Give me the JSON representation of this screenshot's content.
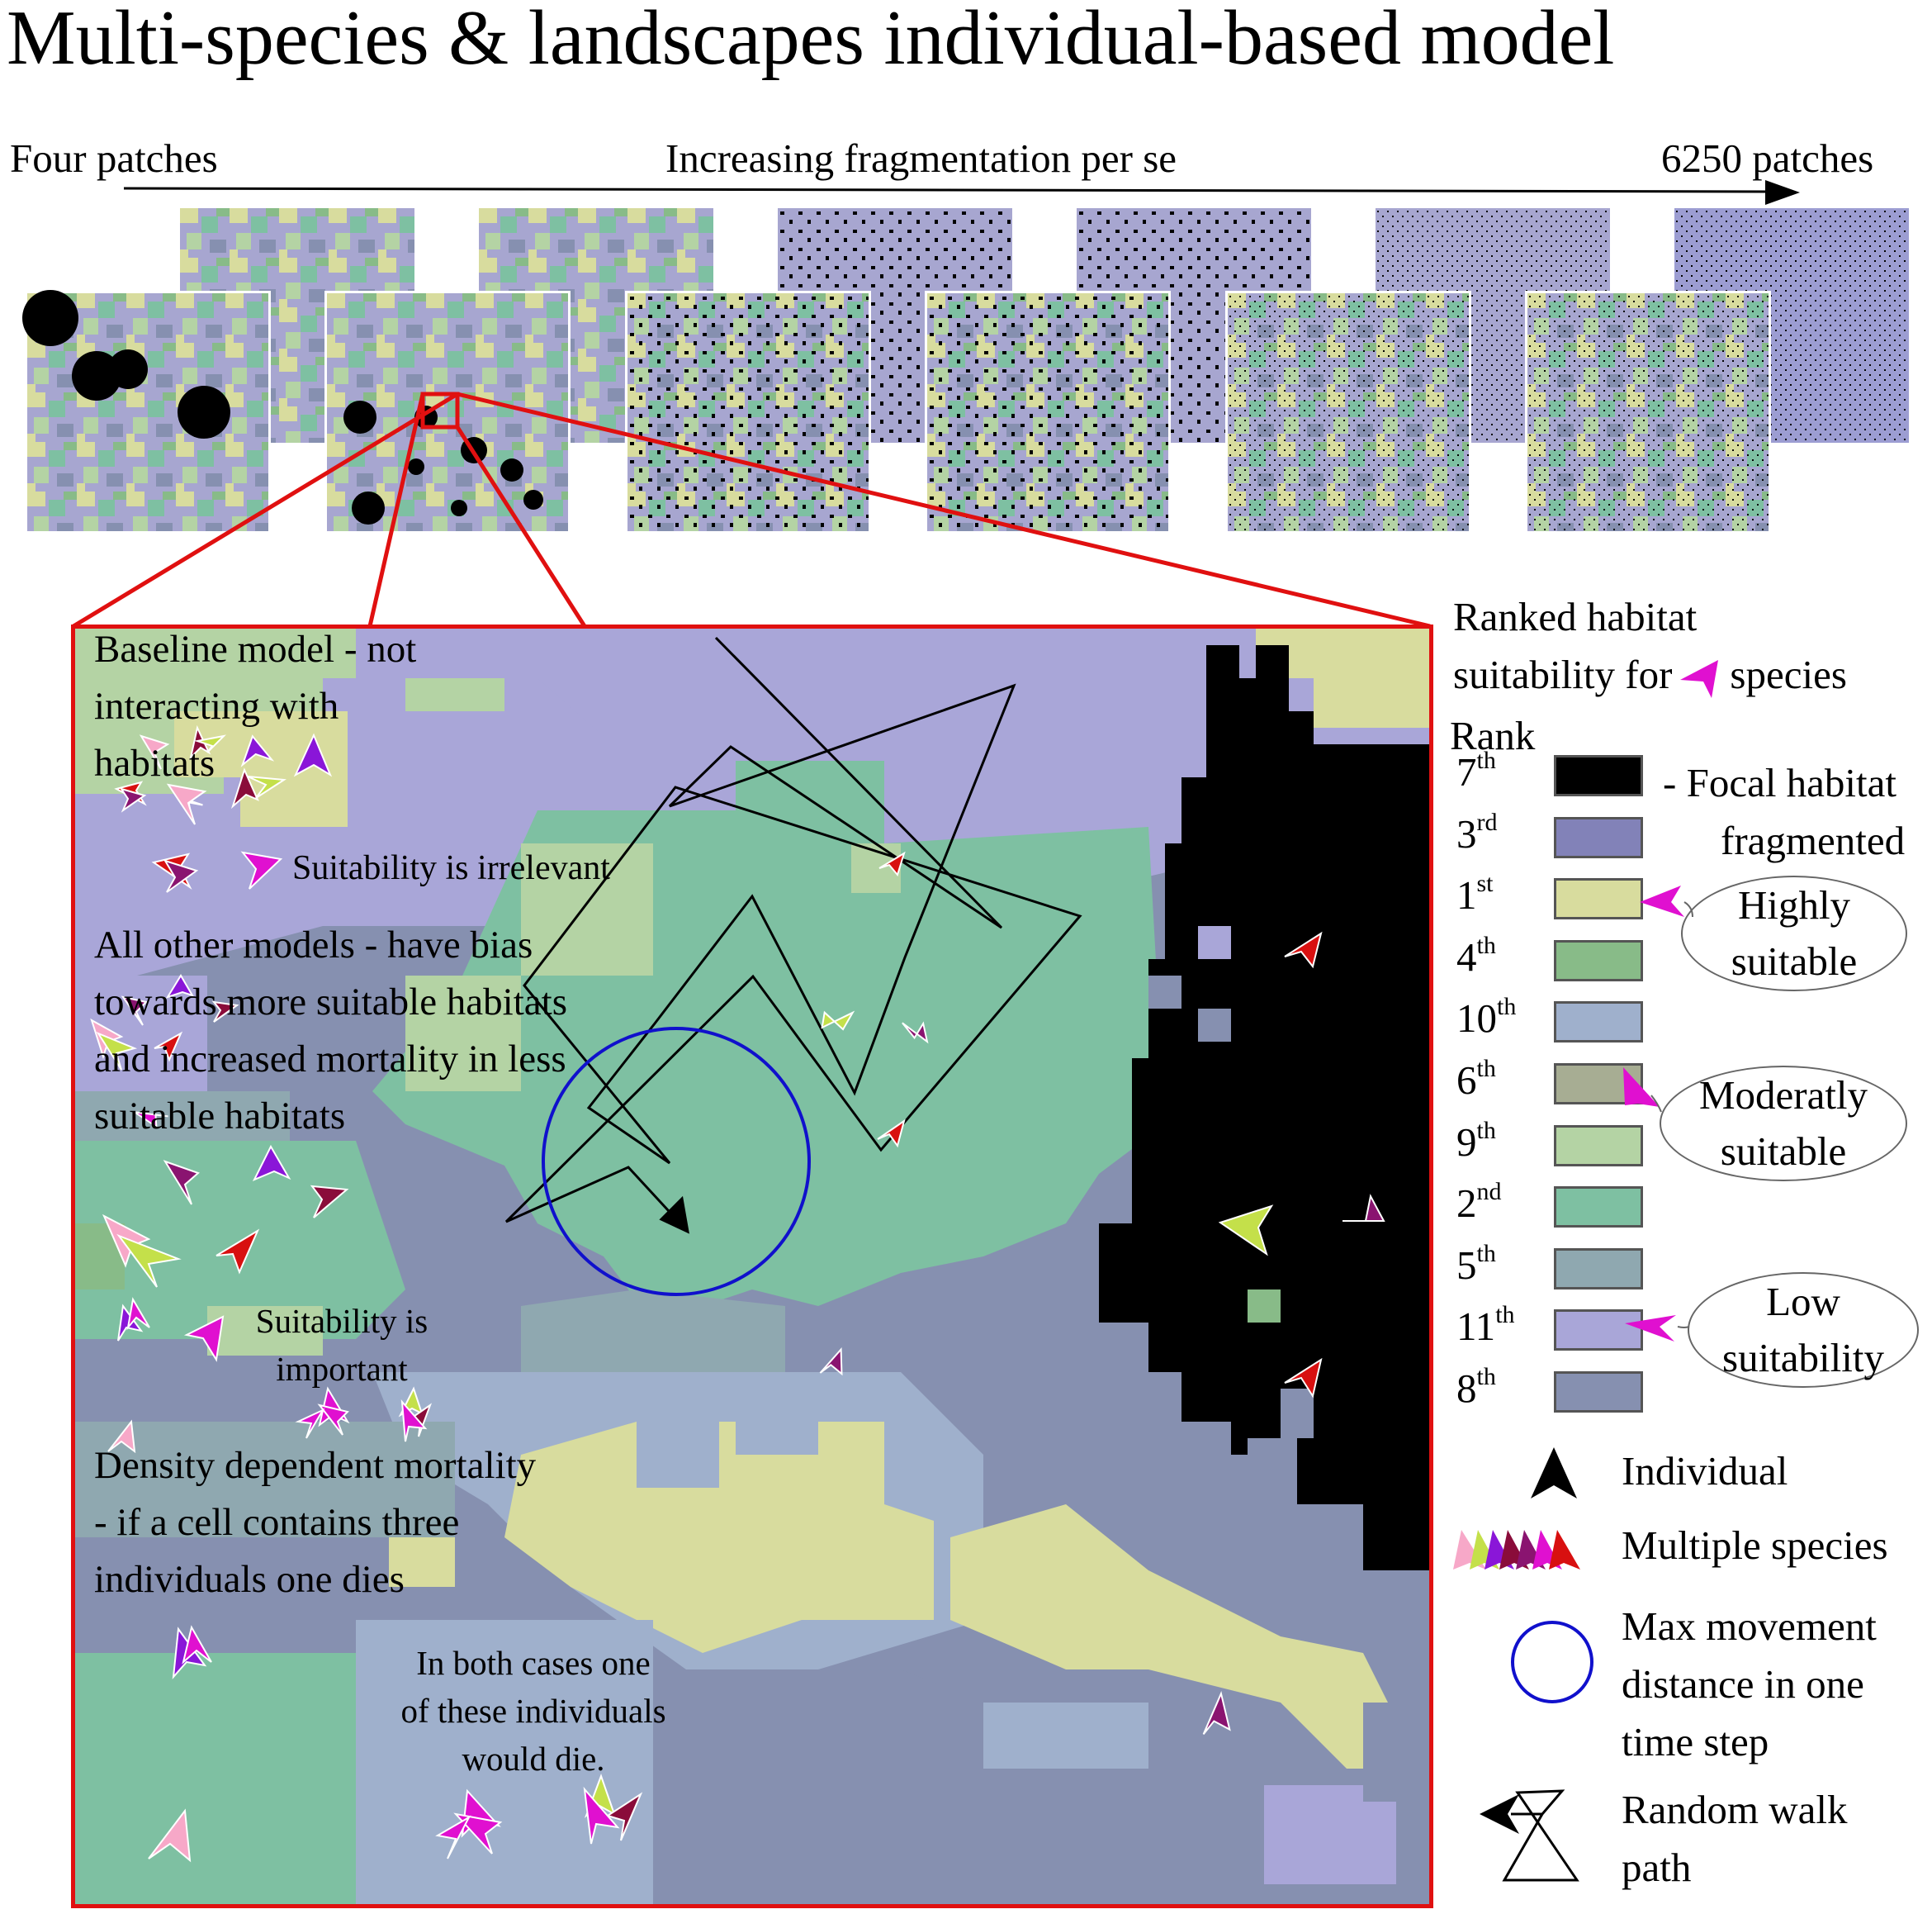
{
  "title": "Multi-species & landscapes individual-based model",
  "fragmentation_axis": {
    "left_label": "Four patches",
    "center_label": "Increasing fragmentation per se",
    "right_label": "6250 patches",
    "arrow_color": "#000000"
  },
  "zoom_frame_color": "#e01010",
  "annotations": {
    "baseline": [
      "Baseline model - not",
      "interacting with",
      "habitats"
    ],
    "suitability_irrelevant": "Suitability is irrelevant",
    "other_models": [
      "All other models - have bias",
      "towards more suitable habitats",
      "and increased mortality in less",
      "suitable habitats"
    ],
    "suitability_important": [
      "Suitability is",
      "important"
    ],
    "density_mortality": [
      "Density dependent mortality",
      "- if a cell contains three",
      "individuals one dies"
    ],
    "both_cases": [
      "In both cases one",
      "of these individuals",
      "would die."
    ]
  },
  "legend": {
    "heading": [
      "Ranked habitat",
      "suitability for",
      "species"
    ],
    "heading_species_icon": "magenta-arrowhead-icon",
    "rank_label": "Rank",
    "ranks": [
      {
        "n": "7",
        "suffix": "th",
        "color": "#000000"
      },
      {
        "n": "3",
        "suffix": "rd",
        "color": "#8282b8"
      },
      {
        "n": "1",
        "suffix": "st",
        "color": "#d8dc9e"
      },
      {
        "n": "4",
        "suffix": "th",
        "color": "#88bb88"
      },
      {
        "n": "10",
        "suffix": "th",
        "color": "#9fb0cc"
      },
      {
        "n": "6",
        "suffix": "th",
        "color": "#a7ad93"
      },
      {
        "n": "9",
        "suffix": "th",
        "color": "#b4d3a4"
      },
      {
        "n": "2",
        "suffix": "nd",
        "color": "#7ec0a2"
      },
      {
        "n": "5",
        "suffix": "th",
        "color": "#8fa8b0"
      },
      {
        "n": "11",
        "suffix": "th",
        "color": "#a9a6d8"
      },
      {
        "n": "8",
        "suffix": "th",
        "color": "#8690b0"
      }
    ],
    "focal_habitat": [
      "- Focal habitat",
      "fragmented"
    ],
    "highly_suitable": [
      "Highly",
      "suitable"
    ],
    "moderately_suitable": [
      "Moderatly",
      "suitable"
    ],
    "low_suitability": [
      "Low",
      "suitability"
    ],
    "individual": "Individual",
    "multiple_species": "Multiple species",
    "max_movement": [
      "Max movement",
      "distance in one",
      "time step"
    ],
    "random_walk": [
      "Random walk",
      "path"
    ],
    "movement_circle_color": "#1010cc",
    "species_colors": [
      "#f7a8c8",
      "#c4e04a",
      "#8a16d8",
      "#8a0c3a",
      "#8a1470",
      "#e010d0",
      "#d81010"
    ]
  }
}
